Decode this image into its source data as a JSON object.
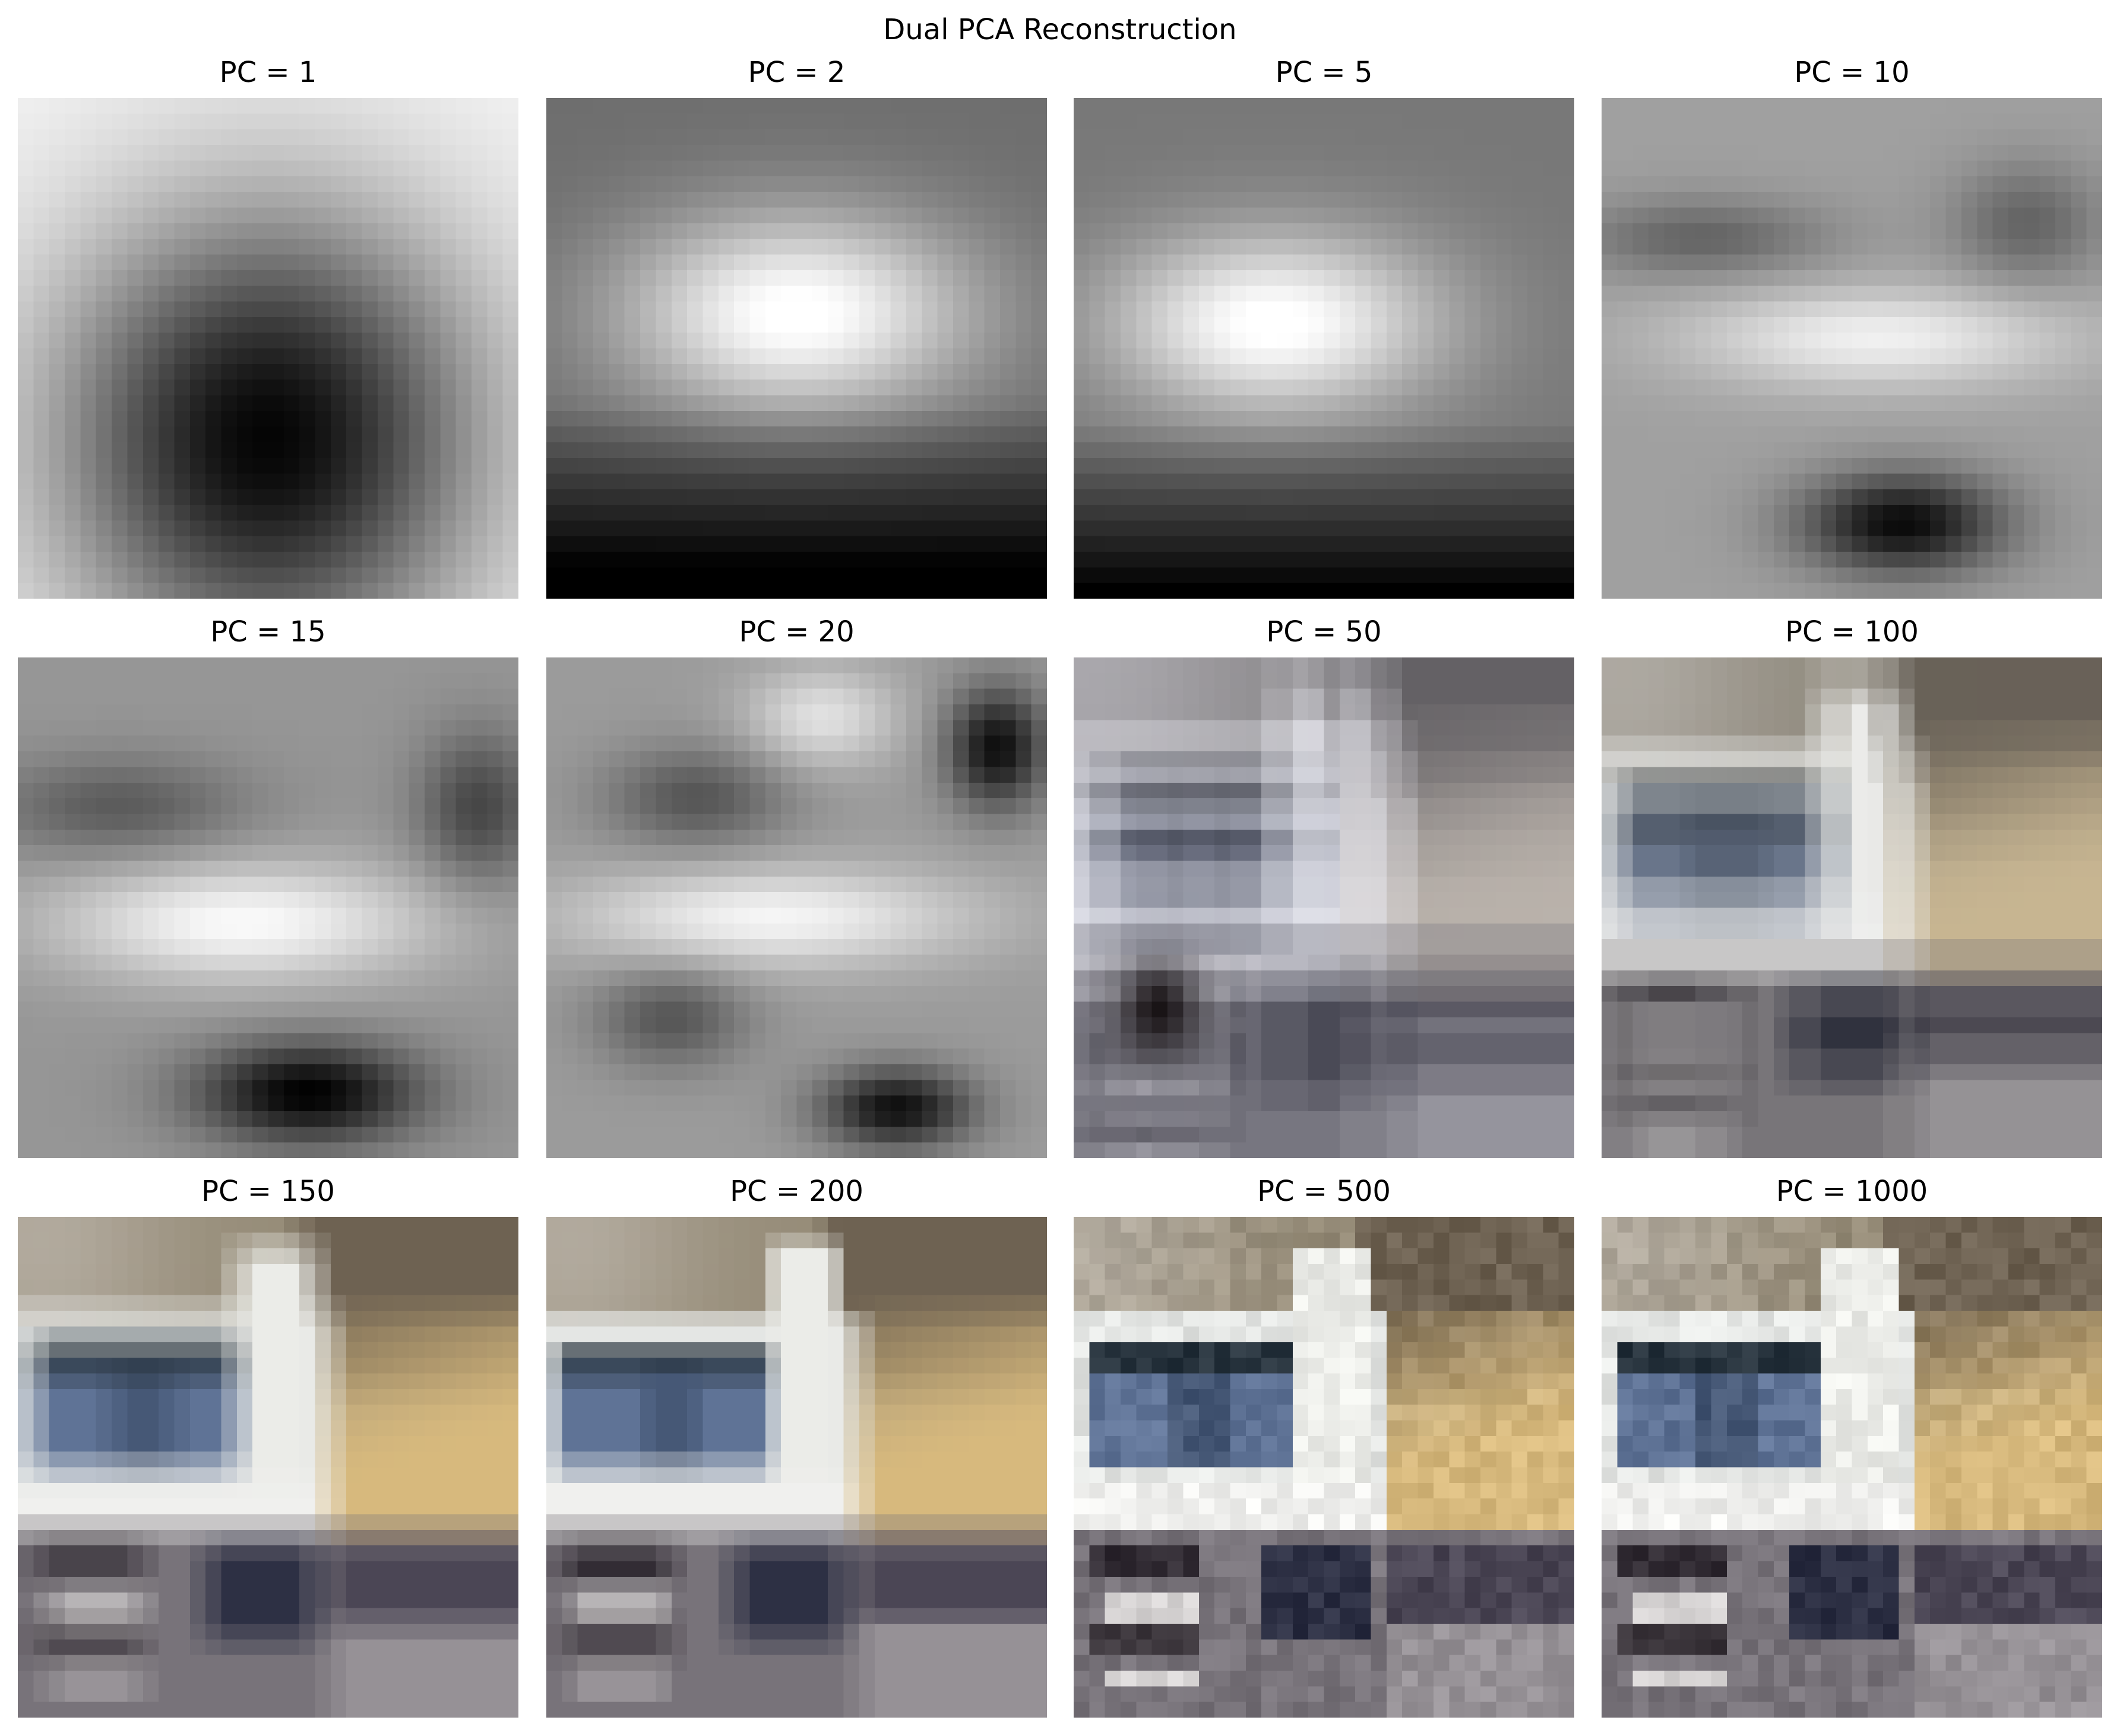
{
  "figure": {
    "title": "Dual PCA Reconstruction"
  },
  "panels": [
    {
      "title": "PC = 1",
      "style": "pc1"
    },
    {
      "title": "PC = 2",
      "style": "pc2"
    },
    {
      "title": "PC = 5",
      "style": "pc5"
    },
    {
      "title": "PC = 10",
      "style": "pc10"
    },
    {
      "title": "PC = 15",
      "style": "pc15"
    },
    {
      "title": "PC = 20",
      "style": "pc20"
    },
    {
      "title": "PC = 50",
      "style": "pc50"
    },
    {
      "title": "PC = 100",
      "style": "pc100"
    },
    {
      "title": "PC = 150",
      "style": "pc150"
    },
    {
      "title": "PC = 200",
      "style": "pc200"
    },
    {
      "title": "PC = 500",
      "style": "pc500"
    },
    {
      "title": "PC = 1000",
      "style": "pc1000"
    }
  ],
  "colors": {
    "background": "#ffffff",
    "text": "#000000",
    "truck_white": "#eef0ee",
    "truck_cargo_tan": "#d8b47a",
    "windshield_blue": "#5a6e8a",
    "bumper_dark": "#2a2a32",
    "foliage_brown": "#6a5e4c"
  }
}
